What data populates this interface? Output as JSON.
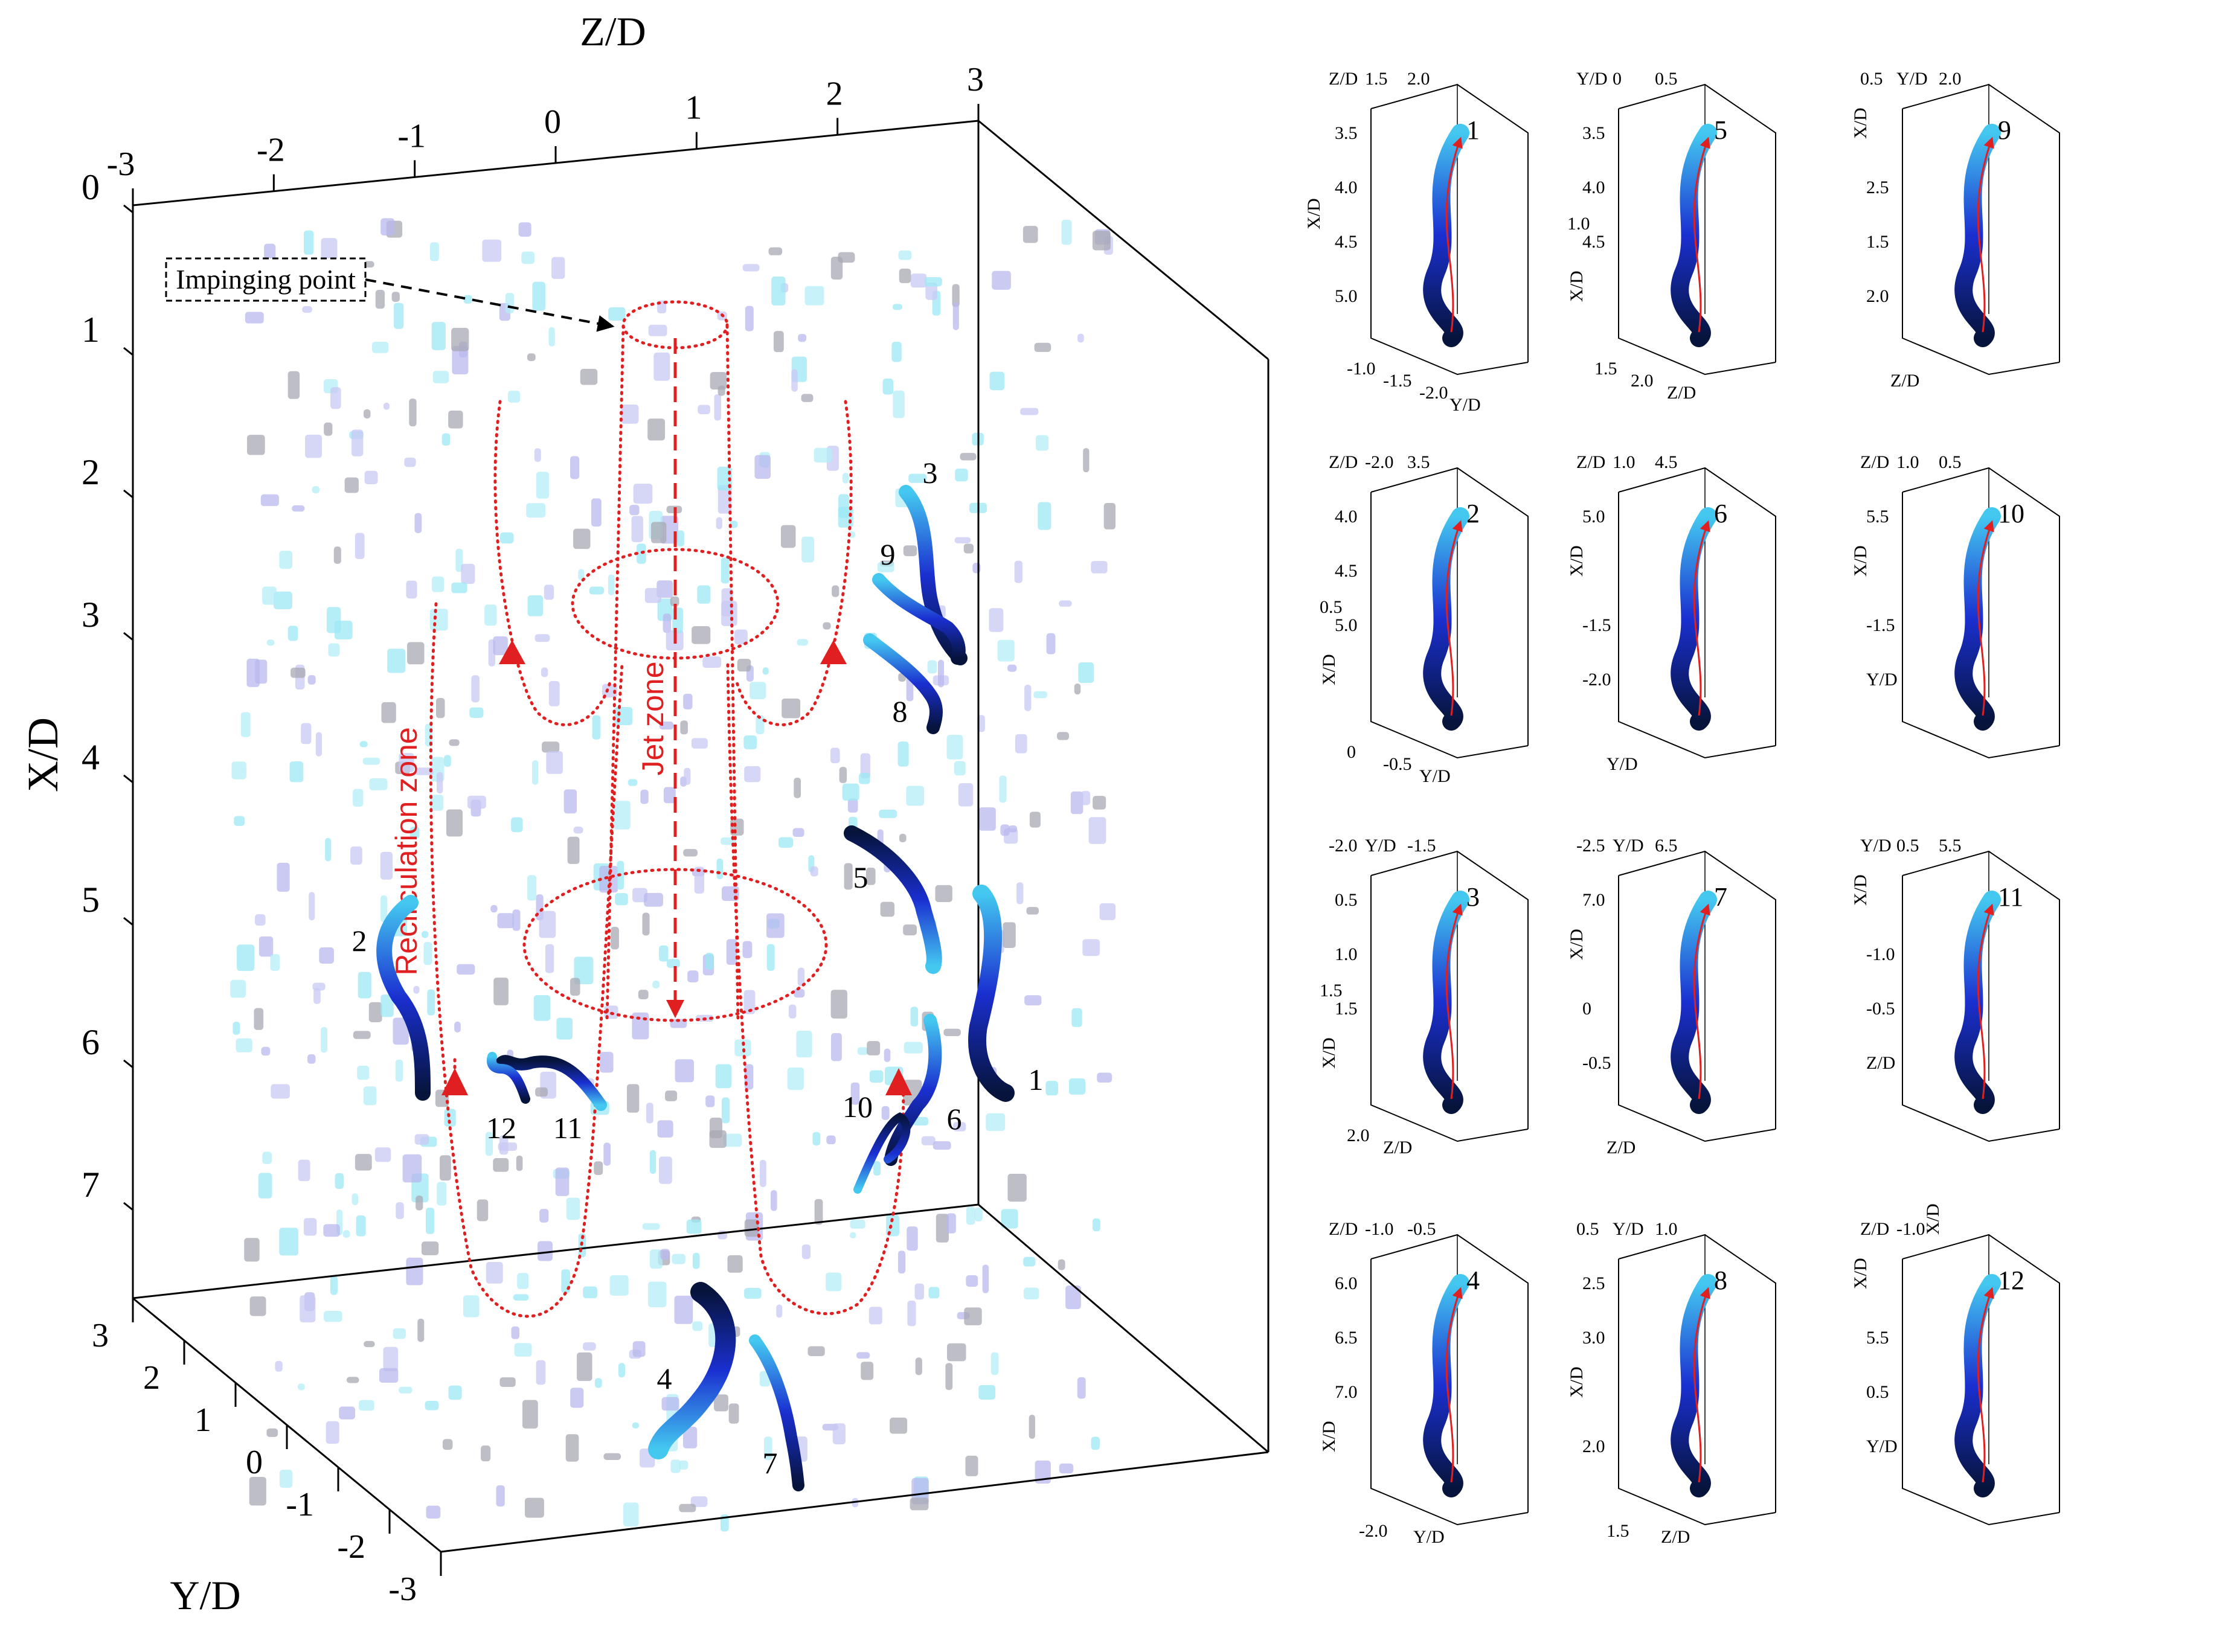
{
  "main_panel": {
    "axes": {
      "z_label": "Z/D",
      "x_label": "X/D",
      "y_label": "Y/D",
      "z_ticks": [
        "-3",
        "-2",
        "-1",
        "0",
        "1",
        "2",
        "3"
      ],
      "x_ticks": [
        "0",
        "1",
        "2",
        "3",
        "4",
        "5",
        "6",
        "7"
      ],
      "y_ticks": [
        "3",
        "2",
        "1",
        "0",
        "-1",
        "-2",
        "-3"
      ]
    },
    "annotations": {
      "impinging_point": "Impinging point",
      "recirculation_zone": "Recirculation zone",
      "jet_zone": "Jet zone"
    },
    "trajectory_labels": [
      "1",
      "2",
      "3",
      "4",
      "5",
      "6",
      "7",
      "8",
      "9",
      "10",
      "11",
      "12"
    ],
    "colors": {
      "trajectory_dark": "#06143c",
      "trajectory_mid": "#1a2fd0",
      "trajectory_light": "#44c8f0",
      "flow_arrows": "#e02020",
      "particles_gray": "#a8a8b4",
      "particles_lavender": "#b8b8ee",
      "particles_cyan": "#9ce8f4"
    }
  },
  "subplots": [
    {
      "id": "1",
      "labels": [
        {
          "t": "Z/D"
        },
        {
          "t": "1.5"
        },
        {
          "t": "2.0"
        },
        {
          "t": "3.5"
        },
        {
          "t": "4.0"
        },
        {
          "t": "4.5"
        },
        {
          "t": "5.0"
        },
        {
          "t": "X/D"
        },
        {
          "t": "-1.0"
        },
        {
          "t": "-1.5"
        },
        {
          "t": "-2.0"
        },
        {
          "t": "Y/D"
        }
      ]
    },
    {
      "id": "5",
      "labels": [
        {
          "t": "Y/D"
        },
        {
          "t": "0"
        },
        {
          "t": "0.5"
        },
        {
          "t": "3.5"
        },
        {
          "t": "4.0"
        },
        {
          "t": "4.5"
        },
        {
          "t": "X/D"
        },
        {
          "t": "1.0"
        },
        {
          "t": "1.5"
        },
        {
          "t": "2.0"
        },
        {
          "t": "Z/D"
        }
      ]
    },
    {
      "id": "9",
      "labels": [
        {
          "t": "0.5"
        },
        {
          "t": "Y/D"
        },
        {
          "t": "2.0"
        },
        {
          "t": "X/D"
        },
        {
          "t": "2.5"
        },
        {
          "t": "1.5"
        },
        {
          "t": "2.0"
        },
        {
          "t": "Z/D"
        }
      ]
    },
    {
      "id": "2",
      "labels": [
        {
          "t": "Z/D"
        },
        {
          "t": "-2.0"
        },
        {
          "t": "3.5"
        },
        {
          "t": "4.0"
        },
        {
          "t": "4.5"
        },
        {
          "t": "5.0"
        },
        {
          "t": "X/D"
        },
        {
          "t": "0.5"
        },
        {
          "t": "0"
        },
        {
          "t": "-0.5"
        },
        {
          "t": "Y/D"
        }
      ]
    },
    {
      "id": "6",
      "labels": [
        {
          "t": "Z/D"
        },
        {
          "t": "1.0"
        },
        {
          "t": "4.5"
        },
        {
          "t": "5.0"
        },
        {
          "t": "X/D"
        },
        {
          "t": "-1.5"
        },
        {
          "t": "-2.0"
        },
        {
          "t": "Y/D"
        }
      ]
    },
    {
      "id": "10",
      "labels": [
        {
          "t": "Z/D"
        },
        {
          "t": "1.0"
        },
        {
          "t": "0.5"
        },
        {
          "t": "5.5"
        },
        {
          "t": "X/D"
        },
        {
          "t": "-1.5"
        },
        {
          "t": "Y/D"
        }
      ]
    },
    {
      "id": "3",
      "labels": [
        {
          "t": "-2.0"
        },
        {
          "t": "Y/D"
        },
        {
          "t": "-1.5"
        },
        {
          "t": "0.5"
        },
        {
          "t": "1.0"
        },
        {
          "t": "1.5"
        },
        {
          "t": "X/D"
        },
        {
          "t": "1.5"
        },
        {
          "t": "2.0"
        },
        {
          "t": "Z/D"
        }
      ]
    },
    {
      "id": "7",
      "labels": [
        {
          "t": "-2.5"
        },
        {
          "t": "Y/D"
        },
        {
          "t": "6.5"
        },
        {
          "t": "7.0"
        },
        {
          "t": "X/D"
        },
        {
          "t": "0"
        },
        {
          "t": "-0.5"
        },
        {
          "t": "Z/D"
        }
      ]
    },
    {
      "id": "11",
      "labels": [
        {
          "t": "Y/D"
        },
        {
          "t": "0.5"
        },
        {
          "t": "5.5"
        },
        {
          "t": "X/D"
        },
        {
          "t": "-1.0"
        },
        {
          "t": "-0.5"
        },
        {
          "t": "Z/D"
        }
      ]
    },
    {
      "id": "4",
      "labels": [
        {
          "t": "Z/D"
        },
        {
          "t": "-1.0"
        },
        {
          "t": "-0.5"
        },
        {
          "t": "6.0"
        },
        {
          "t": "6.5"
        },
        {
          "t": "7.0"
        },
        {
          "t": "X/D"
        },
        {
          "t": "-2.0"
        },
        {
          "t": "Y/D"
        }
      ]
    },
    {
      "id": "8",
      "labels": [
        {
          "t": "0.5"
        },
        {
          "t": "Y/D"
        },
        {
          "t": "1.0"
        },
        {
          "t": "2.5"
        },
        {
          "t": "3.0"
        },
        {
          "t": "X/D"
        },
        {
          "t": "2.0"
        },
        {
          "t": "1.5"
        },
        {
          "t": "Z/D"
        }
      ]
    },
    {
      "id": "12",
      "labels": [
        {
          "t": "Z/D"
        },
        {
          "t": "-1.0"
        },
        {
          "t": "X/D"
        },
        {
          "t": "X/D"
        },
        {
          "t": "5.5"
        },
        {
          "t": "0.5"
        },
        {
          "t": "Y/D"
        }
      ]
    }
  ]
}
